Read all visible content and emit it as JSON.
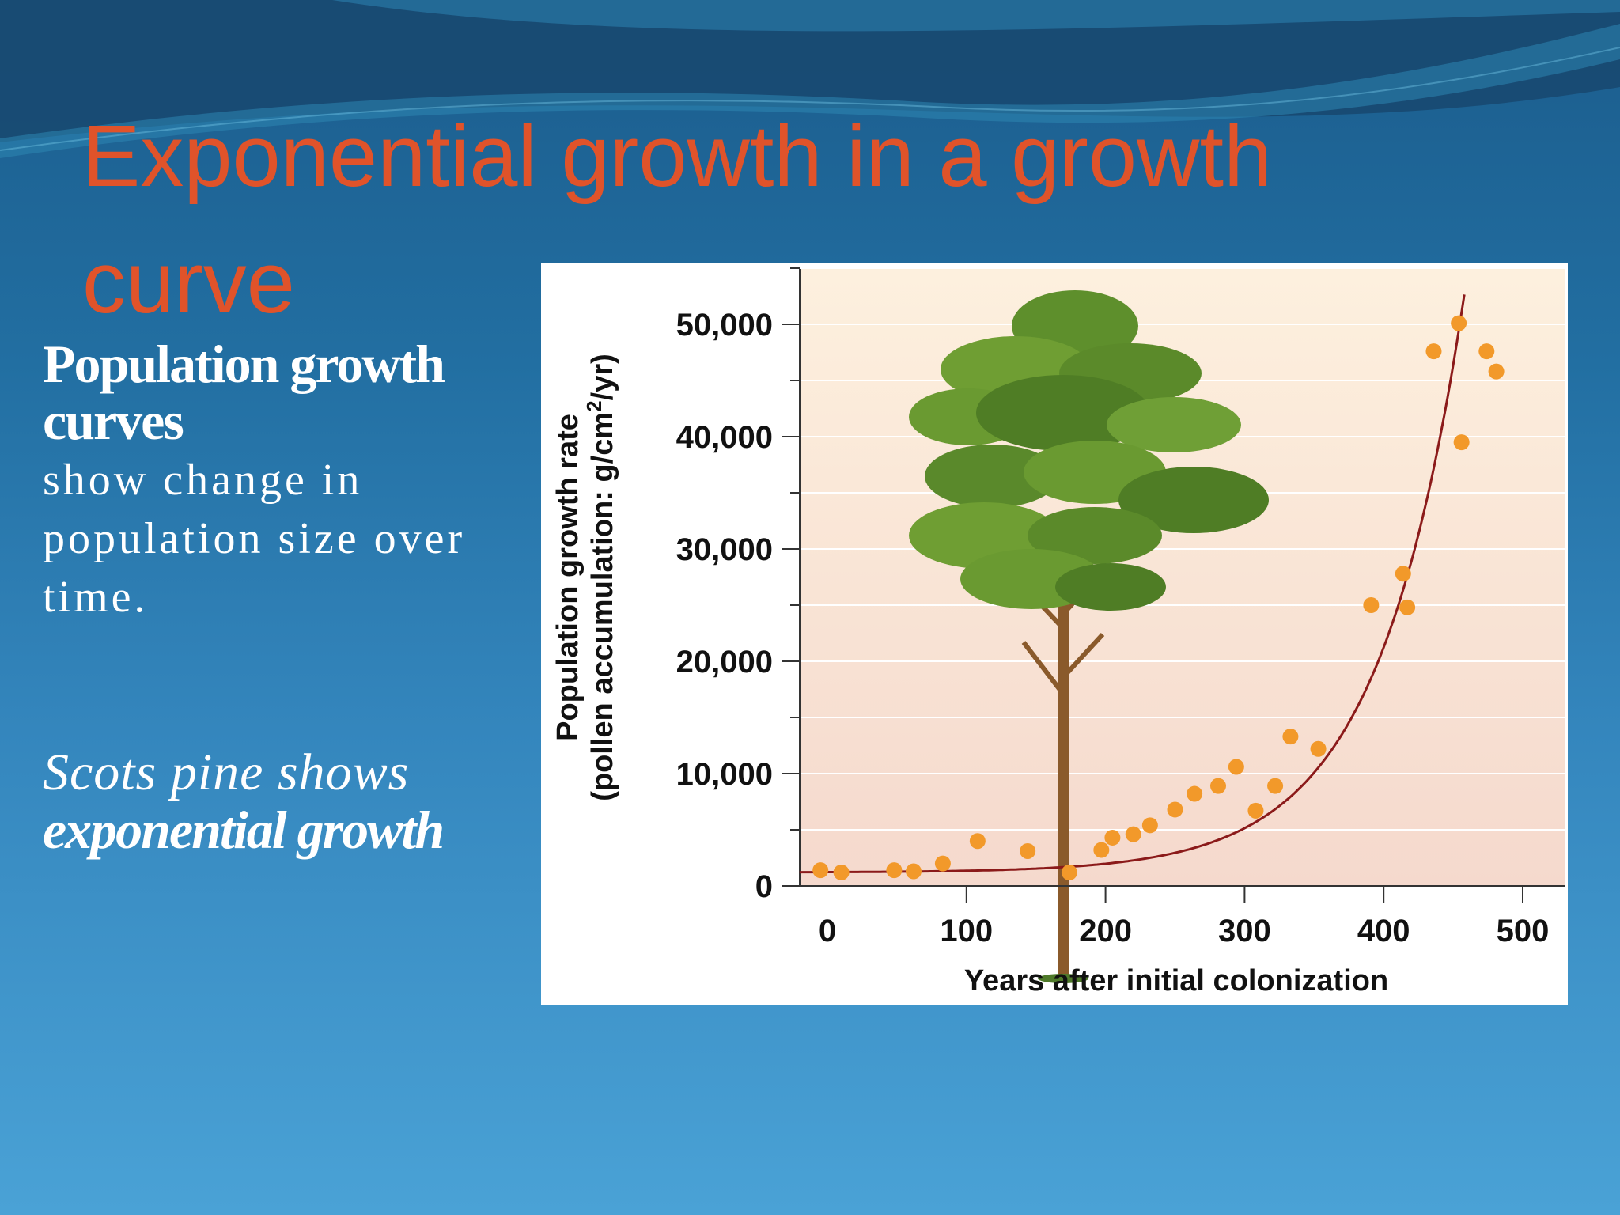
{
  "slide": {
    "title": "Exponential growth in a growth curve",
    "left_text": {
      "lead_bold": "Population growth curves",
      "description": "show change in population size over time.",
      "italic_lead": "Scots pine shows",
      "italic_bold": "exponential growth"
    },
    "colors": {
      "title": "#e0532a",
      "background_top": "#1b5c8c",
      "background_bottom": "#4aa2d6",
      "data_points": "#f2992a",
      "curve": "#8b1a1a"
    },
    "illustration": "scots-pine-tree"
  },
  "chart_data": {
    "type": "scatter",
    "title": "",
    "xlabel": "Years after initial colonization",
    "ylabel_line1": "Population growth rate",
    "ylabel_line2_prefix": "(pollen accumulation: g/cm",
    "ylabel_superscript": "2",
    "ylabel_line2_suffix": "/yr)",
    "xlim": [
      -20,
      525
    ],
    "ylim": [
      0,
      55000
    ],
    "x_ticks": [
      0,
      100,
      200,
      300,
      400,
      500
    ],
    "x_tick_labels": [
      "0",
      "100",
      "200",
      "300",
      "400",
      "500"
    ],
    "y_ticks": [
      0,
      10000,
      20000,
      30000,
      40000,
      50000
    ],
    "y_tick_labels": [
      "0",
      "10,000",
      "20,000",
      "30,000",
      "40,000",
      "50,000"
    ],
    "grid": "horizontal",
    "series": [
      {
        "points": [
          {
            "x": -5,
            "y": 1400
          },
          {
            "x": 10,
            "y": 1200
          },
          {
            "x": 48,
            "y": 1400
          },
          {
            "x": 62,
            "y": 1300
          },
          {
            "x": 83,
            "y": 2000
          },
          {
            "x": 108,
            "y": 4000
          },
          {
            "x": 144,
            "y": 3100
          },
          {
            "x": 174,
            "y": 1200
          },
          {
            "x": 197,
            "y": 3200
          },
          {
            "x": 205,
            "y": 4300
          },
          {
            "x": 220,
            "y": 4600
          },
          {
            "x": 232,
            "y": 5400
          },
          {
            "x": 250,
            "y": 6800
          },
          {
            "x": 264,
            "y": 8200
          },
          {
            "x": 281,
            "y": 8900
          },
          {
            "x": 294,
            "y": 10600
          },
          {
            "x": 308,
            "y": 6700
          },
          {
            "x": 322,
            "y": 8900
          },
          {
            "x": 333,
            "y": 13300
          },
          {
            "x": 353,
            "y": 12200
          },
          {
            "x": 391,
            "y": 25000
          },
          {
            "x": 414,
            "y": 27800
          },
          {
            "x": 417,
            "y": 24800
          },
          {
            "x": 436,
            "y": 47600
          },
          {
            "x": 454,
            "y": 50100
          },
          {
            "x": 456,
            "y": 39500
          },
          {
            "x": 474,
            "y": 47600
          },
          {
            "x": 481,
            "y": 45800
          }
        ]
      }
    ],
    "fit_curve": {
      "kind": "exponential",
      "equation": "y = 1200 + 30 * exp(x / 61.5)",
      "x_range": [
        -20,
        458
      ]
    }
  }
}
